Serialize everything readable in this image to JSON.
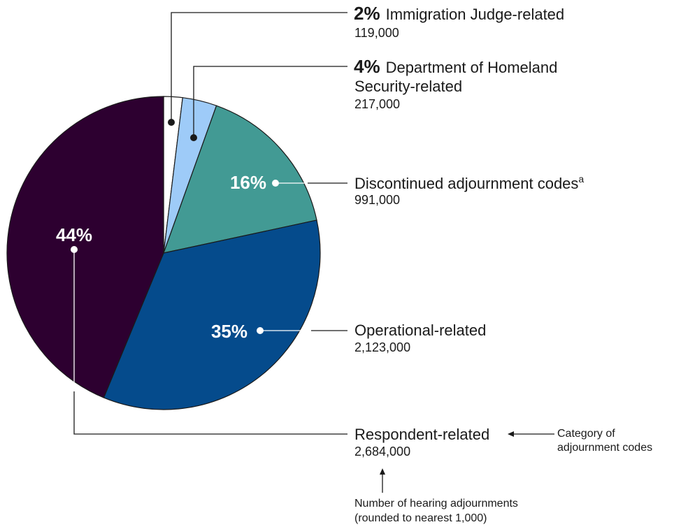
{
  "chart_data": {
    "type": "pie",
    "slices": [
      {
        "key": "ij",
        "label": "Immigration Judge-related",
        "percent": 2,
        "percent_label": "2%",
        "count": "119,000",
        "color": "#ffffff"
      },
      {
        "key": "dhs",
        "label_line1": "Department of Homeland",
        "label_line2": "Security-related",
        "percent": 4,
        "percent_label": "4%",
        "count": "217,000",
        "color": "#9ecbf8"
      },
      {
        "key": "disc",
        "label": "Discontinued adjournment codes",
        "label_sup": "a",
        "percent": 16,
        "percent_label": "16%",
        "count": "991,000",
        "color": "#429a94"
      },
      {
        "key": "oper",
        "label": "Operational-related",
        "percent": 35,
        "percent_label": "35%",
        "count": "2,123,000",
        "color": "#054b8c"
      },
      {
        "key": "resp",
        "label": "Respondent-related",
        "percent": 44,
        "percent_label": "44%",
        "count": "2,684,000",
        "color": "#2d0030"
      }
    ],
    "values": [
      119000,
      217000,
      991000,
      2123000,
      2684000
    ]
  },
  "legend_notes": {
    "category": [
      "Category of",
      "adjournment codes"
    ],
    "number": [
      "Number of hearing adjournments",
      "(rounded to nearest 1,000)"
    ]
  }
}
